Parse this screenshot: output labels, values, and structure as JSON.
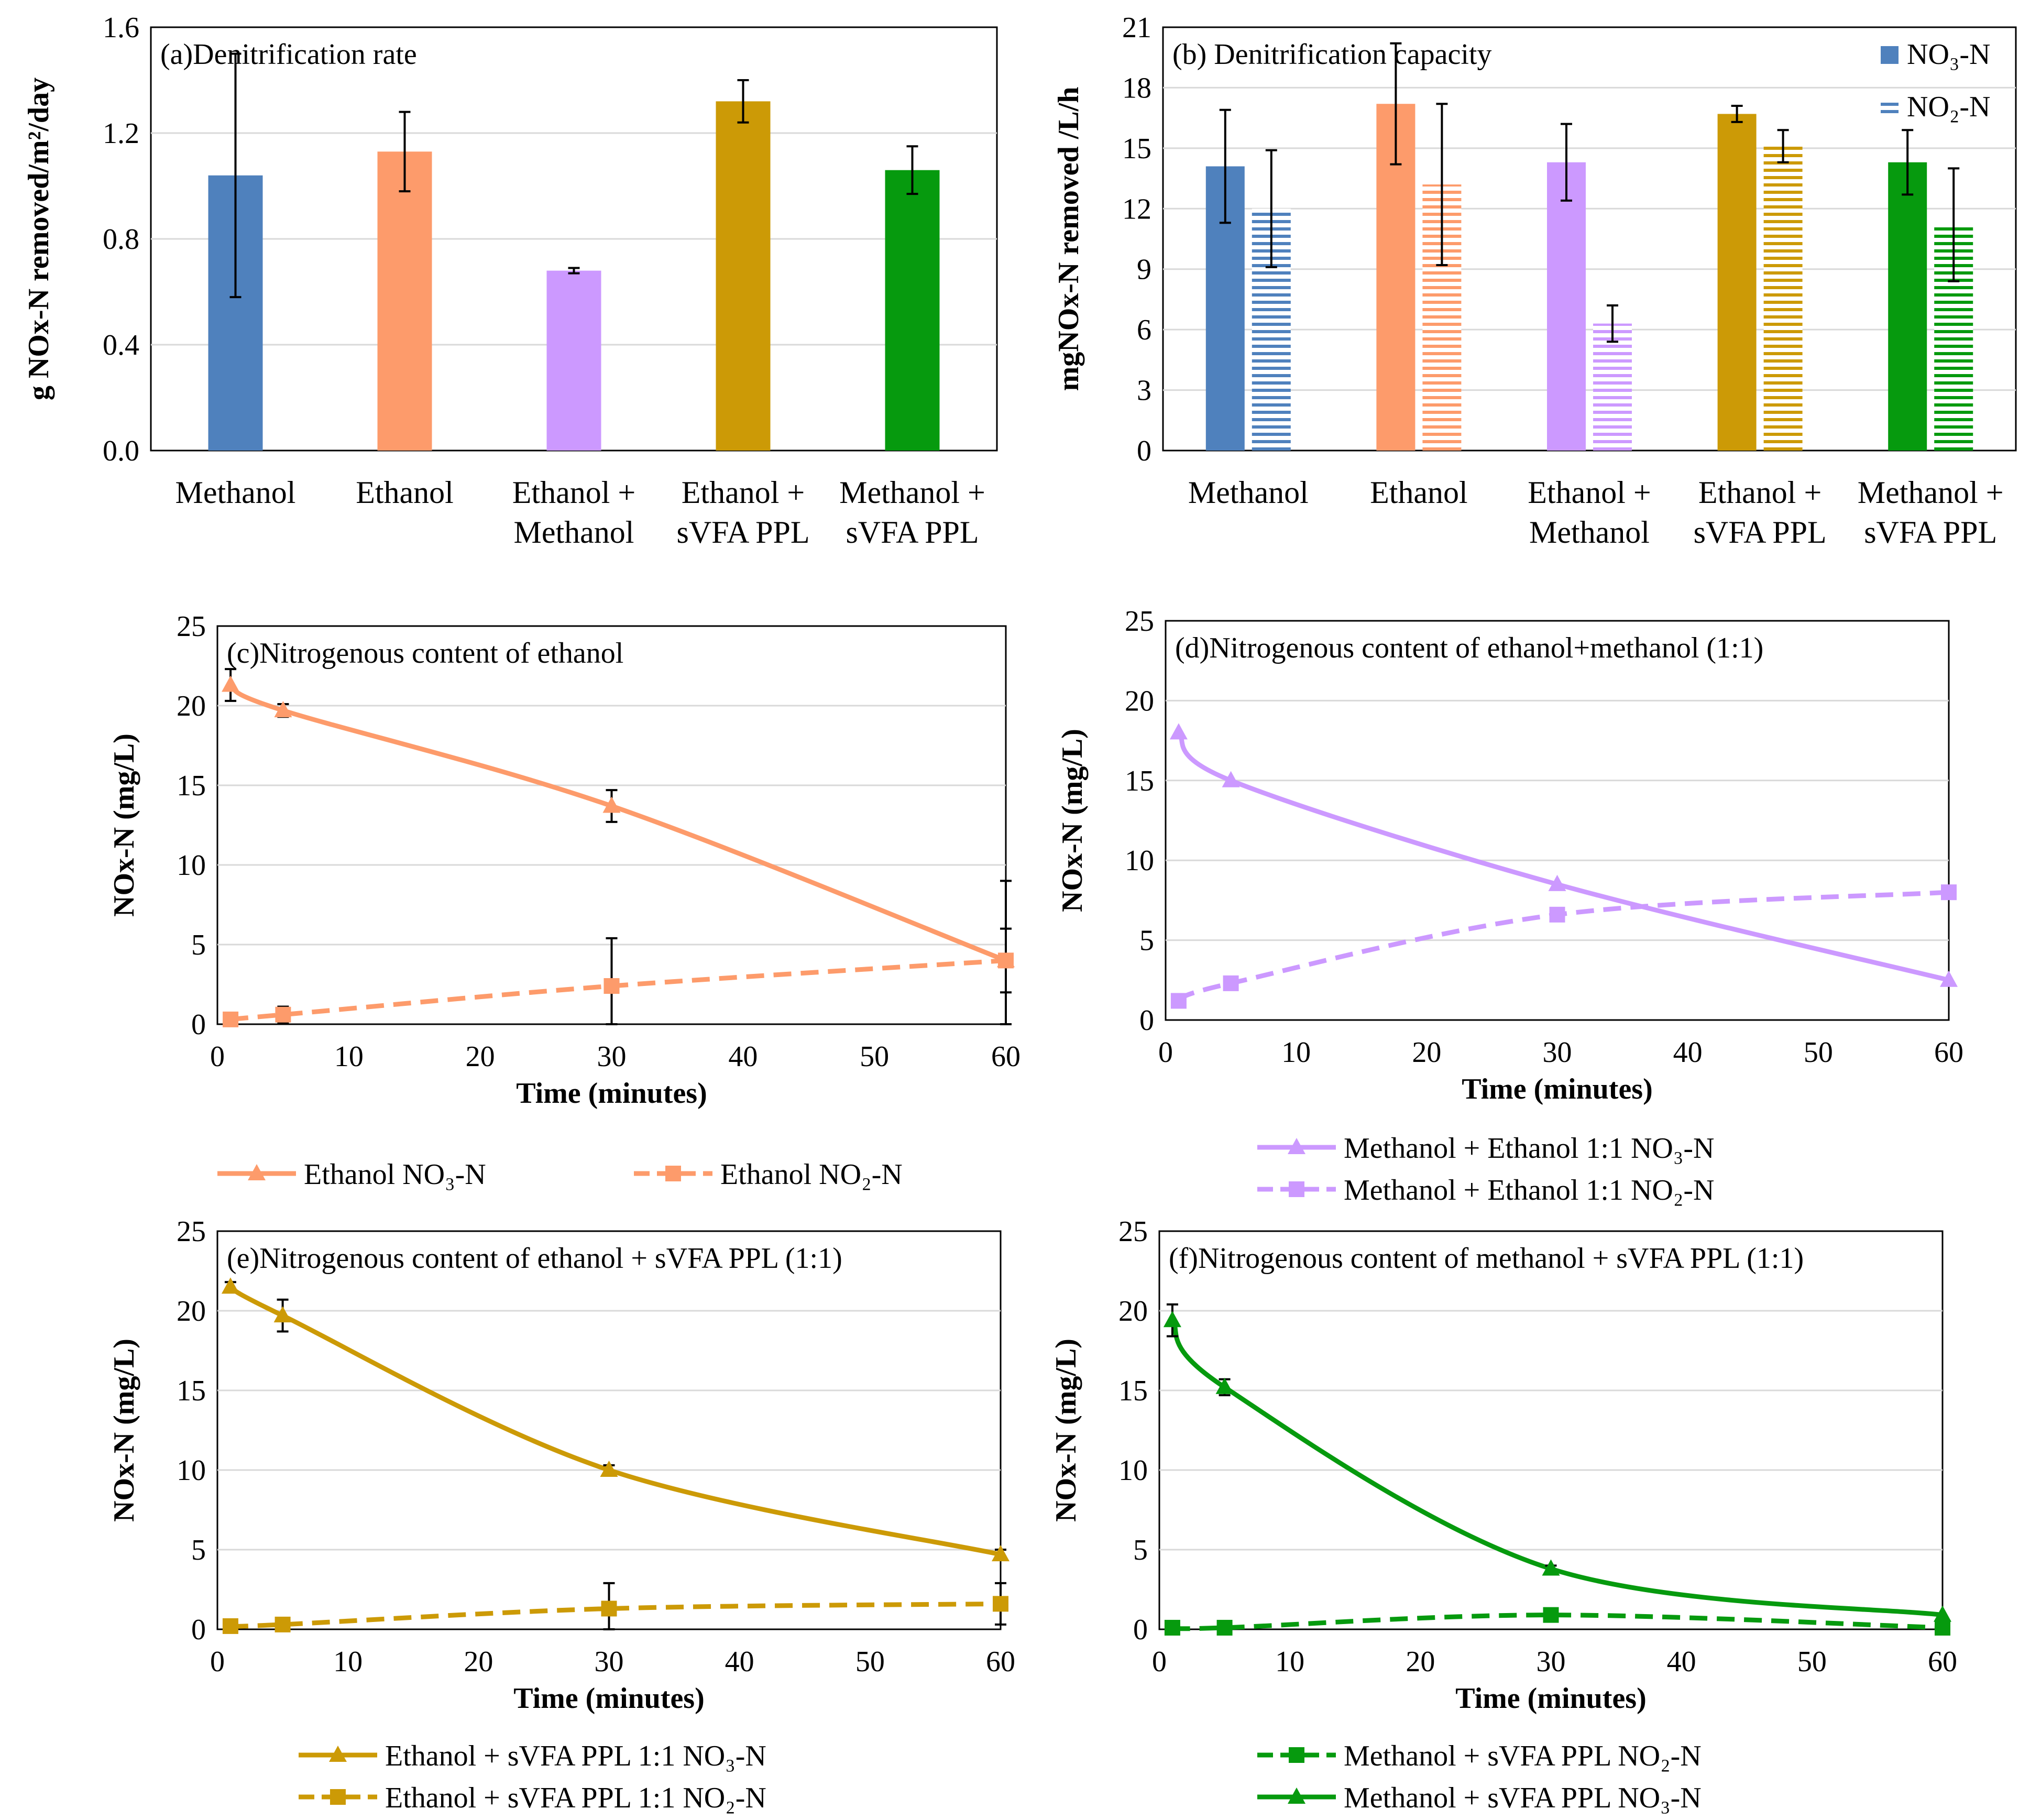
{
  "chart_data": [
    {
      "id": "a",
      "type": "bar",
      "title": "(a)Denitrification  rate",
      "ylabel": "g NOx-N removed/m²/day",
      "ylim": [
        0,
        1.6
      ],
      "yticks": [
        "0.0",
        "0.4",
        "0.8",
        "1.2",
        "1.6"
      ],
      "categories": [
        [
          "Methanol"
        ],
        [
          "Ethanol"
        ],
        [
          "Ethanol +",
          "Methanol"
        ],
        [
          "Ethanol +",
          "sVFA PPL"
        ],
        [
          "Methanol +",
          "sVFA PPL"
        ]
      ],
      "values": [
        1.04,
        1.13,
        0.68,
        1.32,
        1.06
      ],
      "errors": [
        0.46,
        0.15,
        0.01,
        0.08,
        0.09
      ],
      "colors": [
        "#4f81bd",
        "#fd9b6b",
        "#cc99ff",
        "#cc9a06",
        "#069a0e"
      ]
    },
    {
      "id": "b",
      "type": "bar",
      "title": "(b) Denitrification  capacity",
      "ylabel": "mgNOx-N removed /L/h",
      "ylim": [
        0,
        21
      ],
      "yticks": [
        "0",
        "3",
        "6",
        "9",
        "12",
        "15",
        "18",
        "21"
      ],
      "categories": [
        [
          "Methanol"
        ],
        [
          "Ethanol"
        ],
        [
          "Ethanol +",
          "Methanol"
        ],
        [
          "Ethanol +",
          "sVFA PPL"
        ],
        [
          "Methanol +",
          "sVFA PPL"
        ]
      ],
      "series": [
        {
          "name": "NO₃-N",
          "values": [
            14.1,
            17.2,
            14.3,
            16.7,
            14.3
          ],
          "errors": [
            2.8,
            3.0,
            1.9,
            0.4,
            1.6
          ],
          "pattern": "solid"
        },
        {
          "name": "NO₂-N",
          "values": [
            12.0,
            13.2,
            6.3,
            15.1,
            11.2
          ],
          "errors": [
            2.9,
            4.0,
            0.9,
            0.8,
            2.8
          ],
          "pattern": "striped"
        }
      ],
      "colors": [
        "#4f81bd",
        "#fd9b6b",
        "#cc99ff",
        "#cc9a06",
        "#069a0e"
      ],
      "legend_position": "top-right"
    },
    {
      "id": "c",
      "type": "line",
      "title": "(c)Nitrogenous content of ethanol",
      "xlabel": "Time (minutes)",
      "ylabel": "NOx-N (mg/L)",
      "xlim": [
        0,
        60
      ],
      "ylim": [
        0,
        25
      ],
      "xticks": [
        "0",
        "10",
        "20",
        "30",
        "40",
        "50",
        "60"
      ],
      "yticks": [
        "0",
        "5",
        "10",
        "15",
        "20",
        "25"
      ],
      "color": "#fd9b6b",
      "x": [
        1,
        5,
        30,
        60
      ],
      "series": [
        {
          "name": "Ethanol NO₃-N",
          "values": [
            21.3,
            19.7,
            13.7,
            4.0
          ],
          "errors": [
            1.0,
            0.4,
            1.0,
            5.0
          ],
          "marker": "triangle",
          "dash": false
        },
        {
          "name": "Ethanol NO₂-N",
          "values": [
            0.3,
            0.6,
            2.4,
            4.0
          ],
          "errors": [
            0.2,
            0.5,
            3.0,
            2.0
          ],
          "marker": "square",
          "dash": true
        }
      ]
    },
    {
      "id": "d",
      "type": "line",
      "title": "(d)Nitrogenous content of ethanol+methanol (1:1)",
      "xlabel": "Time (minutes)",
      "ylabel": "NOx-N (mg/L)",
      "xlim": [
        0,
        60
      ],
      "ylim": [
        0,
        25
      ],
      "xticks": [
        "0",
        "10",
        "20",
        "30",
        "40",
        "50",
        "60"
      ],
      "yticks": [
        "0",
        "5",
        "10",
        "15",
        "20",
        "25"
      ],
      "color": "#cc99ff",
      "x": [
        1,
        5,
        30,
        60
      ],
      "series": [
        {
          "name": "Methanol + Ethanol 1:1 NO₃-N",
          "values": [
            18.0,
            15.0,
            8.5,
            2.5
          ],
          "errors": [
            0,
            0,
            0,
            0
          ],
          "marker": "triangle",
          "dash": false
        },
        {
          "name": "Methanol + Ethanol 1:1 NO₂-N",
          "values": [
            1.2,
            2.3,
            6.6,
            8.0
          ],
          "errors": [
            0,
            0,
            0,
            0
          ],
          "marker": "square",
          "dash": true
        }
      ]
    },
    {
      "id": "e",
      "type": "line",
      "title": "(e)Nitrogenous content of ethanol + sVFA PPL (1:1)",
      "xlabel": "Time (minutes)",
      "ylabel": "NOx-N (mg/L)",
      "xlim": [
        0,
        60
      ],
      "ylim": [
        0,
        25
      ],
      "xticks": [
        "0",
        "10",
        "20",
        "30",
        "40",
        "50",
        "60"
      ],
      "yticks": [
        "0",
        "5",
        "10",
        "15",
        "20",
        "25"
      ],
      "color": "#cc9a06",
      "x": [
        1,
        5,
        30,
        60
      ],
      "series": [
        {
          "name": "Ethanol +  sVFA PPL 1:1 NO₃-N",
          "values": [
            21.5,
            19.7,
            10.0,
            4.7
          ],
          "errors": [
            0.3,
            1.0,
            0.3,
            0.3
          ],
          "marker": "triangle",
          "dash": false
        },
        {
          "name": "Ethanol +  sVFA PPL 1:1 NO₂-N",
          "values": [
            0.2,
            0.3,
            1.3,
            1.6
          ],
          "errors": [
            0.1,
            0.1,
            1.6,
            1.3
          ],
          "marker": "square",
          "dash": true
        }
      ]
    },
    {
      "id": "f",
      "type": "line",
      "title": "(f)Nitrogenous content of methanol + sVFA PPL (1:1)",
      "xlabel": "Time (minutes)",
      "ylabel": "NOx-N (mg/L)",
      "xlim": [
        0,
        60
      ],
      "ylim": [
        0,
        25
      ],
      "xticks": [
        "0",
        "10",
        "20",
        "30",
        "40",
        "50",
        "60"
      ],
      "yticks": [
        "0",
        "5",
        "10",
        "15",
        "20",
        "25"
      ],
      "color": "#069a0e",
      "x": [
        1,
        5,
        30,
        60
      ],
      "series": [
        {
          "name": "Methanol + sVFA PPL NO₂-N",
          "values": [
            0.1,
            0.1,
            0.9,
            0.1
          ],
          "errors": [
            0,
            0,
            0.2,
            0
          ],
          "marker": "square",
          "dash": true
        },
        {
          "name": "Methanol + sVFA PPL NO₃-N",
          "values": [
            19.4,
            15.2,
            3.8,
            0.9
          ],
          "errors": [
            1.0,
            0.5,
            0.2,
            0
          ],
          "marker": "triangle",
          "dash": false
        }
      ]
    }
  ]
}
